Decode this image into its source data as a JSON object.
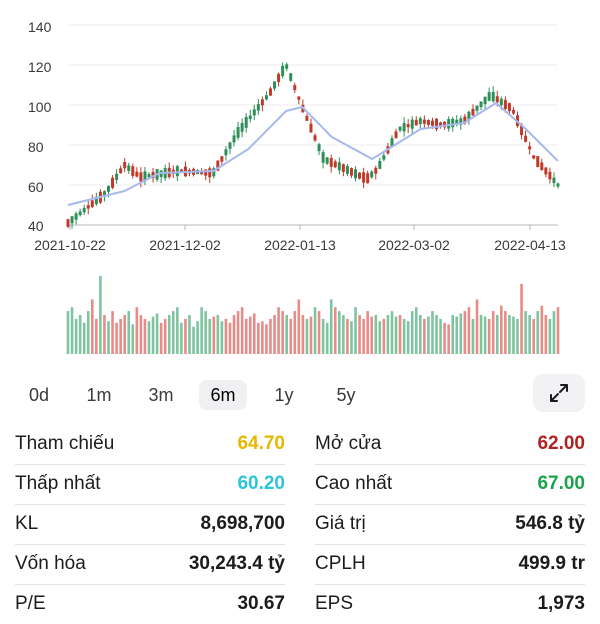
{
  "chart_data": {
    "type": "candlestick",
    "y_ticks": [
      "140",
      "120",
      "100",
      "80",
      "60",
      "40"
    ],
    "y_range": [
      40,
      140
    ],
    "x_ticks": [
      "2021-10-22",
      "2021-12-02",
      "2022-01-13",
      "2022-03-02",
      "2022-04-13"
    ],
    "price_keypoints": [
      {
        "date": "2021-10-22",
        "close": 41
      },
      {
        "date": "2021-11-05",
        "close": 56
      },
      {
        "date": "2021-11-12",
        "close": 70
      },
      {
        "date": "2021-11-18",
        "close": 64
      },
      {
        "date": "2021-12-02",
        "close": 67
      },
      {
        "date": "2021-12-15",
        "close": 66
      },
      {
        "date": "2021-12-24",
        "close": 86
      },
      {
        "date": "2022-01-05",
        "close": 106
      },
      {
        "date": "2022-01-11",
        "close": 120
      },
      {
        "date": "2022-01-17",
        "close": 99
      },
      {
        "date": "2022-01-25",
        "close": 73
      },
      {
        "date": "2022-02-10",
        "close": 63
      },
      {
        "date": "2022-02-14",
        "close": 68
      },
      {
        "date": "2022-02-22",
        "close": 88
      },
      {
        "date": "2022-03-02",
        "close": 92
      },
      {
        "date": "2022-03-10",
        "close": 90
      },
      {
        "date": "2022-03-18",
        "close": 92
      },
      {
        "date": "2022-03-28",
        "close": 105
      },
      {
        "date": "2022-04-05",
        "close": 98
      },
      {
        "date": "2022-04-13",
        "close": 74
      },
      {
        "date": "2022-04-22",
        "close": 60
      }
    ],
    "ma_keypoints": [
      {
        "date": "2021-10-22",
        "value": 50
      },
      {
        "date": "2021-11-12",
        "value": 57
      },
      {
        "date": "2021-11-25",
        "value": 66
      },
      {
        "date": "2021-12-15",
        "value": 67
      },
      {
        "date": "2021-12-28",
        "value": 78
      },
      {
        "date": "2022-01-11",
        "value": 97
      },
      {
        "date": "2022-01-17",
        "value": 99
      },
      {
        "date": "2022-01-28",
        "value": 84
      },
      {
        "date": "2022-02-12",
        "value": 73
      },
      {
        "date": "2022-03-02",
        "value": 88
      },
      {
        "date": "2022-03-18",
        "value": 91
      },
      {
        "date": "2022-03-30",
        "value": 101
      },
      {
        "date": "2022-04-10",
        "value": 88
      },
      {
        "date": "2022-04-22",
        "value": 72
      }
    ],
    "volume_relative": [
      0.55,
      0.6,
      0.45,
      0.5,
      0.4,
      0.55,
      0.7,
      0.45,
      1.0,
      0.5,
      0.42,
      0.55,
      0.4,
      0.45,
      0.5,
      0.55,
      0.38,
      0.6,
      0.5,
      0.45,
      0.42,
      0.48,
      0.52,
      0.4,
      0.45,
      0.5,
      0.55,
      0.6,
      0.4,
      0.45,
      0.5,
      0.35,
      0.42,
      0.6,
      0.55,
      0.45,
      0.48,
      0.5,
      0.42,
      0.45,
      0.4,
      0.5,
      0.55,
      0.6,
      0.45,
      0.48,
      0.52,
      0.4,
      0.42,
      0.38,
      0.45,
      0.5,
      0.6,
      0.55,
      0.5,
      0.45,
      0.55,
      0.7,
      0.5,
      0.45,
      0.48,
      0.6,
      0.55,
      0.45,
      0.4,
      0.7,
      0.6,
      0.55,
      0.5,
      0.45,
      0.42,
      0.6,
      0.5,
      0.45,
      0.55,
      0.48,
      0.5,
      0.42,
      0.45,
      0.5,
      0.55,
      0.48,
      0.5,
      0.45,
      0.42,
      0.55,
      0.6,
      0.5,
      0.45,
      0.48,
      0.55,
      0.5,
      0.45,
      0.4,
      0.38,
      0.5,
      0.48,
      0.52,
      0.55,
      0.6,
      0.45,
      0.7,
      0.5,
      0.48,
      0.45,
      0.55,
      0.5,
      0.62,
      0.55,
      0.5,
      0.48,
      0.45,
      0.9,
      0.55,
      0.5,
      0.45,
      0.55,
      0.62,
      0.5,
      0.45,
      0.55,
      0.6
    ]
  },
  "tabs": [
    {
      "label": "0d",
      "active": false
    },
    {
      "label": "1m",
      "active": false
    },
    {
      "label": "3m",
      "active": false
    },
    {
      "label": "6m",
      "active": true
    },
    {
      "label": "1y",
      "active": false
    },
    {
      "label": "5y",
      "active": false
    }
  ],
  "expand_icon": "expand-arrows-icon",
  "colors": {
    "up": "#7fc4a1",
    "down": "#e88c88",
    "ma": "#a7b9ee",
    "reference": "#e6b800",
    "low": "#2ec4d6",
    "red_value": "#b22222",
    "green_value": "#1aa34a"
  },
  "stats": {
    "reference_label": "Tham chiếu",
    "reference_value": "64.70",
    "open_label": "Mở cửa",
    "open_value": "62.00",
    "low_label": "Thấp nhất",
    "low_value": "60.20",
    "high_label": "Cao nhất",
    "high_value": "67.00",
    "volume_label": "KL",
    "volume_value": "8,698,700",
    "turnover_label": "Giá trị",
    "turnover_value": "546.8 tỷ",
    "market_cap_label": "Vốn hóa",
    "market_cap_value": "30,243.4 tỷ",
    "shares_label": "CPLH",
    "shares_value": "499.9 tr",
    "pe_label": "P/E",
    "pe_value": "30.67",
    "eps_label": "EPS",
    "eps_value": "1,973"
  }
}
